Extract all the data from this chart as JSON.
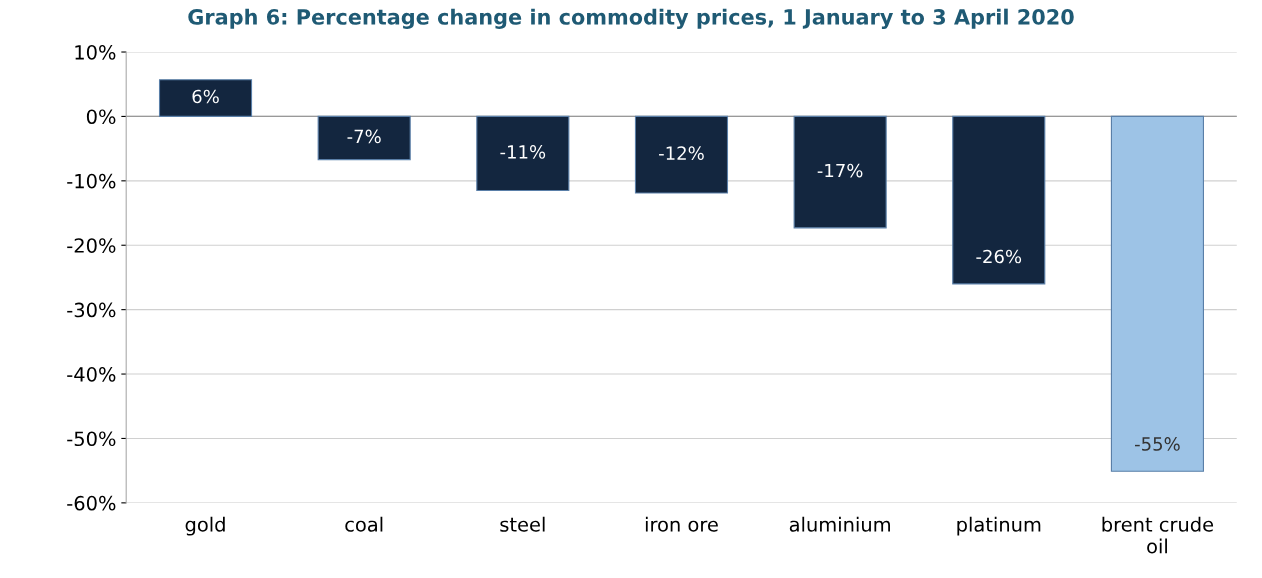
{
  "chart_data": {
    "type": "bar",
    "title": "Graph 6: Percentage change in commodity prices, 1 January to 3 April 2020",
    "categories": [
      "gold",
      "coal",
      "steel",
      "iron ore",
      "aluminium",
      "platinum",
      "brent crude\noil"
    ],
    "values": [
      5.7,
      -6.7,
      -11.5,
      -11.9,
      -17.3,
      -26.0,
      -55.1
    ],
    "colors": [
      "#13263f",
      "#13263f",
      "#13263f",
      "#13263f",
      "#13263f",
      "#13263f",
      "#9dc3e6"
    ],
    "value_labels": [
      "6%",
      "-7%",
      "-11%",
      "-12%",
      "-17%",
      "-26%",
      "-55%"
    ],
    "ylim": [
      -60,
      10
    ],
    "yticks": [
      {
        "value": 10,
        "label": "10%"
      },
      {
        "value": 0,
        "label": "0%"
      },
      {
        "value": -10,
        "label": "-10%"
      },
      {
        "value": -20,
        "label": "-20%"
      },
      {
        "value": -30,
        "label": "-30%"
      },
      {
        "value": -40,
        "label": "-40%"
      },
      {
        "value": -50,
        "label": "-50%"
      },
      {
        "value": -60,
        "label": "-60%"
      }
    ],
    "grid": "y"
  }
}
